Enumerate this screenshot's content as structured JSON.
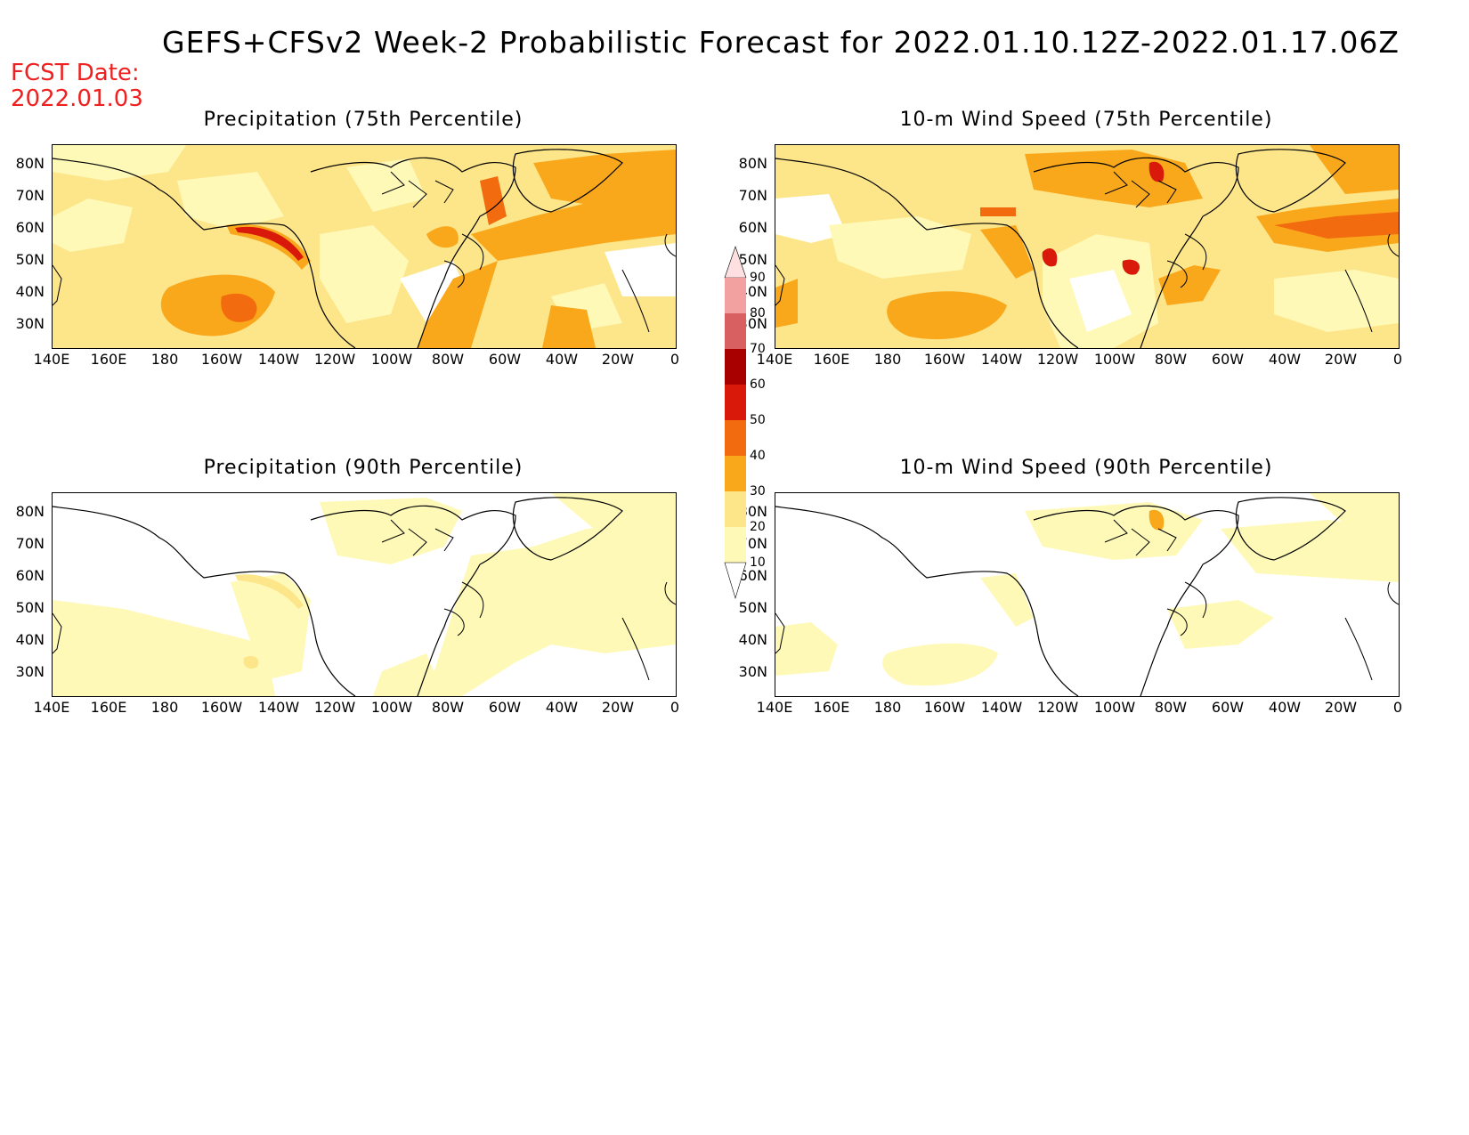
{
  "title": "GEFS+CFSv2 Week-2 Probabilistic Forecast for 2022.01.10.12Z-2022.01.17.06Z",
  "fcst_date": {
    "line1": "FCST Date:",
    "line2": "2022.01.03"
  },
  "panels": [
    {
      "title": "Precipitation (75th Percentile)"
    },
    {
      "title": "10-m Wind Speed (75th Percentile)"
    },
    {
      "title": "Precipitation (90th Percentile)"
    },
    {
      "title": "10-m Wind Speed (90th Percentile)"
    }
  ],
  "lat_labels": [
    "80N",
    "70N",
    "60N",
    "50N",
    "40N",
    "30N"
  ],
  "lon_labels": [
    "140E",
    "160E",
    "180",
    "160W",
    "140W",
    "120W",
    "100W",
    "80W",
    "60W",
    "40W",
    "20W",
    "0"
  ],
  "colorbar": {
    "levels": [
      "10",
      "20",
      "30",
      "40",
      "50",
      "60",
      "70",
      "80",
      "90"
    ],
    "colors": [
      "#fff9b8",
      "#fde58a",
      "#f9a81c",
      "#f26b0e",
      "#d9190a",
      "#a80000",
      "#d96060",
      "#f2a0a0",
      "#ffe0e0"
    ]
  }
}
